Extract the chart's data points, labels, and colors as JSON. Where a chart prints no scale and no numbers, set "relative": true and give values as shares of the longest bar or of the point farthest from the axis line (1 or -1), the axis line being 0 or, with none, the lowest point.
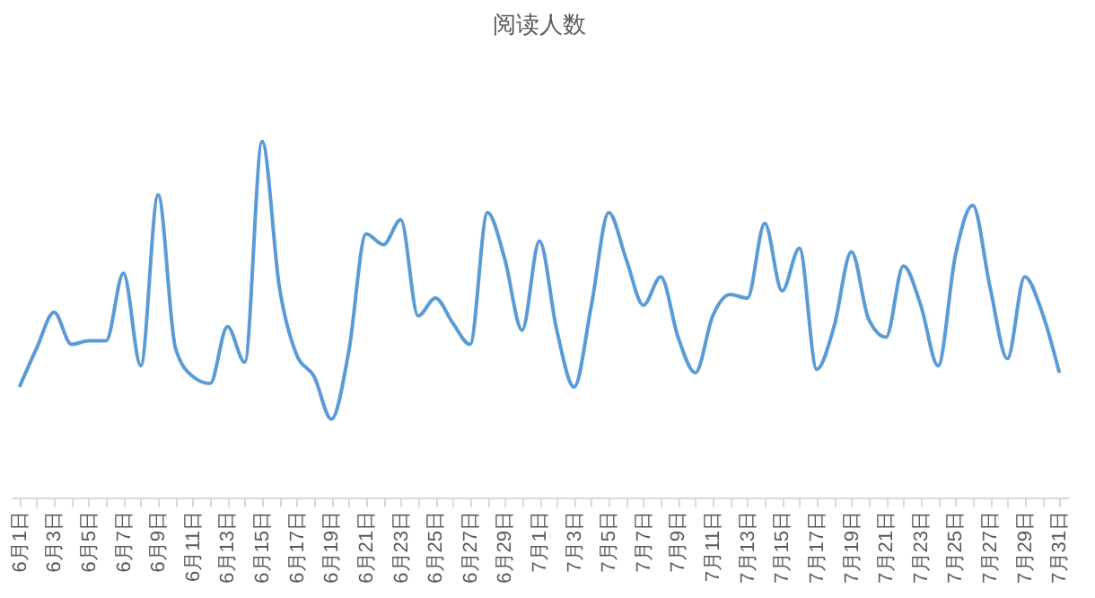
{
  "chart_data": {
    "type": "line",
    "title": "阅读人数",
    "relative": true,
    "grid": false,
    "marker": "none",
    "line_style": "solid",
    "categories": [
      "6月1日",
      null,
      "6月3日",
      null,
      "6月5日",
      null,
      "6月7日",
      null,
      "6月9日",
      null,
      "6月11日",
      null,
      "6月13日",
      null,
      "6月15日",
      null,
      "6月17日",
      null,
      "6月19日",
      null,
      "6月21日",
      null,
      "6月23日",
      null,
      "6月25日",
      null,
      "6月27日",
      null,
      "6月29日",
      null,
      "7月1日",
      null,
      "7月3日",
      null,
      "7月5日",
      null,
      "7月7日",
      null,
      "7月9日",
      null,
      "7月11日",
      null,
      "7月13日",
      null,
      "7月15日",
      null,
      "7月17日",
      null,
      "7月19日",
      null,
      "7月21日",
      null,
      "7月23日",
      null,
      "7月25日",
      null,
      "7月27日",
      null,
      "7月29日",
      null,
      "7月31日"
    ],
    "series": [
      {
        "color": "#5b9bd5",
        "values": [
          0.31,
          0.42,
          0.52,
          0.43,
          0.44,
          0.44,
          0.63,
          0.37,
          0.85,
          0.42,
          0.34,
          0.32,
          0.48,
          0.38,
          1,
          0.59,
          0.4,
          0.34,
          0.22,
          0.41,
          0.74,
          0.71,
          0.78,
          0.51,
          0.56,
          0.49,
          0.43,
          0.8,
          0.67,
          0.47,
          0.72,
          0.47,
          0.31,
          0.54,
          0.8,
          0.67,
          0.54,
          0.62,
          0.45,
          0.35,
          0.51,
          0.57,
          0.56,
          0.77,
          0.58,
          0.7,
          0.36,
          0.48,
          0.69,
          0.5,
          0.45,
          0.65,
          0.54,
          0.37,
          0.68,
          0.82,
          0.59,
          0.39,
          0.62,
          0.52,
          0.35
        ]
      }
    ]
  }
}
